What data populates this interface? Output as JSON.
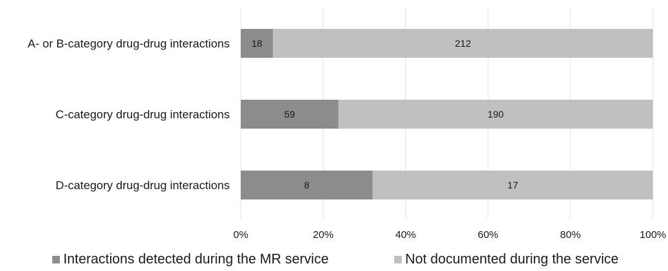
{
  "chart_data": {
    "type": "bar",
    "orientation": "horizontal",
    "stacking": "percent",
    "categories": [
      "A- or B-category drug-drug interactions",
      "C-category drug-drug interactions",
      "D-category drug-drug interactions"
    ],
    "series": [
      {
        "name": "Interactions detected during the MR service",
        "values": [
          18,
          59,
          8
        ],
        "color": "#8c8c8c"
      },
      {
        "name": "Not documented during the service",
        "values": [
          212,
          190,
          17
        ],
        "color": "#c0c0c0"
      }
    ],
    "x_ticks": [
      "0%",
      "20%",
      "40%",
      "60%",
      "80%",
      "100%"
    ],
    "xlim": [
      0,
      100
    ],
    "grid": true,
    "legend_position": "bottom",
    "title": "",
    "xlabel": "",
    "ylabel": ""
  }
}
